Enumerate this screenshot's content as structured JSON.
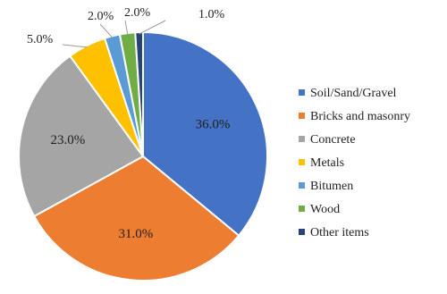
{
  "chart_data": {
    "type": "pie",
    "legend_position": "right",
    "slices": [
      {
        "name": "Soil/Sand/Gravel",
        "value": 36.0,
        "label": "36.0%",
        "color": "#4472c4"
      },
      {
        "name": "Bricks and masonry",
        "value": 31.0,
        "label": "31.0%",
        "color": "#ed7d31"
      },
      {
        "name": "Concrete",
        "value": 23.0,
        "label": "23.0%",
        "color": "#a5a5a5"
      },
      {
        "name": "Metals",
        "value": 5.0,
        "label": "5.0%",
        "color": "#ffc000"
      },
      {
        "name": "Bitumen",
        "value": 2.0,
        "label": "2.0%",
        "color": "#5b9bd5"
      },
      {
        "name": "Wood",
        "value": 2.0,
        "label": "2.0%",
        "color": "#70ad47"
      },
      {
        "name": "Other items",
        "value": 1.0,
        "label": "1.0%",
        "color": "#264478"
      }
    ]
  }
}
